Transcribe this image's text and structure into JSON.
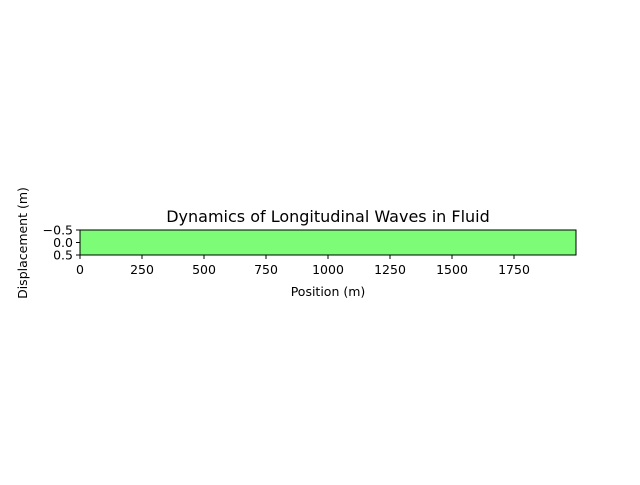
{
  "chart_data": {
    "type": "heatmap",
    "title": "Dynamics of Longitudinal Waves in Fluid",
    "xlabel": "Position (m)",
    "ylabel": "Displacement (m)",
    "xlim": [
      0,
      2000
    ],
    "ylim": [
      0.5,
      -0.5
    ],
    "x_ticks": [
      0,
      250,
      500,
      750,
      1000,
      1250,
      1500,
      1750
    ],
    "x_tick_labels": [
      "0",
      "250",
      "500",
      "750",
      "1000",
      "1250",
      "1500",
      "1750"
    ],
    "y_ticks": [
      -0.5,
      0.0,
      0.5
    ],
    "y_tick_labels": [
      "−0.5",
      "0.0",
      "0.5"
    ],
    "values": [
      [
        0.0
      ]
    ],
    "fill_color": "#7cfc77",
    "grid": false,
    "legend": "none"
  }
}
